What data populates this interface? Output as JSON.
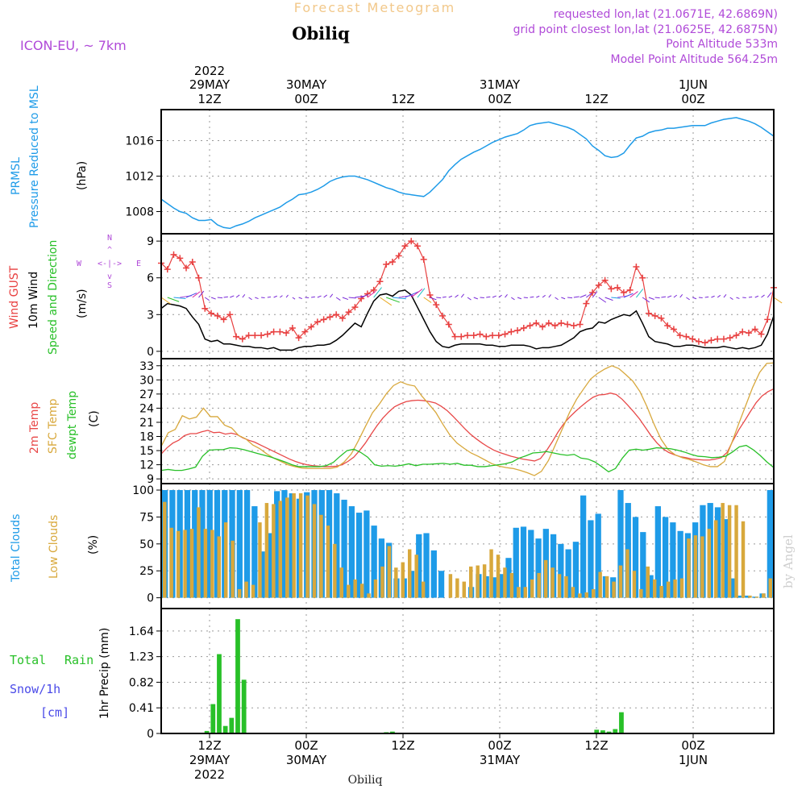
{
  "header": {
    "title": "Forecast Meteogram",
    "location": "Obiliq",
    "model": "ICON-EU, ~ 7km",
    "requested": "requested lon,lat (21.0671E, 42.6869N)",
    "gridpoint": "grid point closest lon,lat (21.0625E, 42.6875N)",
    "point_alt": "Point Altitude 533m",
    "model_alt": "Model Point Altitude 564.25m",
    "credit": "by Angel",
    "footer_location": "Obiliq"
  },
  "time_axis": {
    "top_labels": [
      {
        "line1": "2022",
        "line2": "29MAY",
        "line3": "12Z"
      },
      {
        "line1": "",
        "line2": "30MAY",
        "line3": "00Z"
      },
      {
        "line1": "",
        "line2": "",
        "line3": "12Z"
      },
      {
        "line1": "",
        "line2": "31MAY",
        "line3": "00Z"
      },
      {
        "line1": "",
        "line2": "",
        "line3": "12Z"
      },
      {
        "line1": "",
        "line2": "1JUN",
        "line3": "00Z"
      }
    ],
    "bottom_labels": [
      {
        "line1": "12Z",
        "line2": "29MAY",
        "line3": "2022"
      },
      {
        "line1": "00Z",
        "line2": "30MAY",
        "line3": ""
      },
      {
        "line1": "12Z",
        "line2": "",
        "line3": ""
      },
      {
        "line1": "00Z",
        "line2": "31MAY",
        "line3": ""
      },
      {
        "line1": "12Z",
        "line2": "",
        "line3": ""
      },
      {
        "line1": "00Z",
        "line2": "1JUN",
        "line3": ""
      }
    ]
  },
  "panels": {
    "pressure": {
      "label1": "PRMSL",
      "label2": "Pressure Reduced to MSL",
      "unit": "(hPa)",
      "ticks": [
        "1008",
        "1012",
        "1016"
      ]
    },
    "wind": {
      "label1": "Wind GUST",
      "label2": "10m Wind",
      "label3": "Speed and Direction",
      "unit": "(m/s)",
      "ticks": [
        "0",
        "3",
        "6",
        "9"
      ],
      "compass": {
        "n": "N",
        "s": "S",
        "w": "W",
        "e": "E"
      }
    },
    "temp": {
      "label1": "2m Temp",
      "label2": "SFC Temp",
      "label3": "dewpt Temp",
      "unit": "(C)",
      "ticks": [
        "9",
        "12",
        "15",
        "18",
        "21",
        "24",
        "27",
        "30",
        "33"
      ]
    },
    "clouds": {
      "label1": "Total Clouds",
      "label2": "Low Clouds",
      "unit": "(%)",
      "ticks": [
        "0",
        "25",
        "50",
        "75",
        "100"
      ]
    },
    "precip": {
      "label1": "Total",
      "label1b": "Rain",
      "label2": "Snow/1h",
      "label3": "[cm]",
      "unit": "1hr Precip (mm)",
      "ticks": [
        "0",
        "0.41",
        "0.82",
        "1.23",
        "1.64"
      ]
    }
  },
  "chart_data": {
    "type": "line",
    "x": "hours from 29MAY 06Z",
    "x_ticks_hours": [
      6,
      18,
      30,
      42,
      54,
      66
    ],
    "pressure_hpa": [
      1009.4,
      1008.9,
      1008.4,
      1008.0,
      1007.8,
      1007.3,
      1007.0,
      1007.0,
      1007.1,
      1006.5,
      1006.2,
      1006.1,
      1006.4,
      1006.6,
      1006.9,
      1007.3,
      1007.6,
      1007.9,
      1008.2,
      1008.5,
      1009.0,
      1009.4,
      1009.9,
      1010.0,
      1010.2,
      1010.5,
      1010.9,
      1011.4,
      1011.7,
      1011.9,
      1012.0,
      1012.0,
      1011.8,
      1011.6,
      1011.3,
      1011.0,
      1010.7,
      1010.5,
      1010.2,
      1010.0,
      1009.9,
      1009.8,
      1009.7,
      1010.2,
      1010.9,
      1011.6,
      1012.6,
      1013.3,
      1013.9,
      1014.3,
      1014.7,
      1015.0,
      1015.4,
      1015.8,
      1016.1,
      1016.4,
      1016.6,
      1016.8,
      1017.2,
      1017.7,
      1017.9,
      1018.0,
      1018.1,
      1017.9,
      1017.7,
      1017.5,
      1017.2,
      1016.7,
      1016.2,
      1015.4,
      1014.9,
      1014.3,
      1014.1,
      1014.2,
      1014.6,
      1015.5,
      1016.3,
      1016.5,
      1016.9,
      1017.1,
      1017.2,
      1017.4,
      1017.4,
      1017.5,
      1017.6,
      1017.7,
      1017.7,
      1017.7,
      1018.0,
      1018.2,
      1018.4,
      1018.5,
      1018.6,
      1018.4,
      1018.2,
      1017.9,
      1017.5,
      1017.0,
      1016.5
    ],
    "gust_ms": [
      7.2,
      6.7,
      7.9,
      7.6,
      6.8,
      7.3,
      6.0,
      3.5,
      3.1,
      2.9,
      2.6,
      3.0,
      1.2,
      1.0,
      1.3,
      1.3,
      1.3,
      1.4,
      1.6,
      1.6,
      1.5,
      1.9,
      1.1,
      1.6,
      2.0,
      2.4,
      2.6,
      2.8,
      3.0,
      2.7,
      3.2,
      3.6,
      4.3,
      4.7,
      5.0,
      5.7,
      7.1,
      7.3,
      7.8,
      8.6,
      9.0,
      8.6,
      7.5,
      4.6,
      3.8,
      2.9,
      2.2,
      1.2,
      1.2,
      1.3,
      1.3,
      1.4,
      1.2,
      1.3,
      1.3,
      1.4,
      1.6,
      1.7,
      1.9,
      2.1,
      2.3,
      2.0,
      2.3,
      2.1,
      2.3,
      2.2,
      2.1,
      2.2,
      3.9,
      4.8,
      5.4,
      5.8,
      5.1,
      5.2,
      4.8,
      5.0,
      6.9,
      6.0,
      3.1,
      2.9,
      2.7,
      2.1,
      1.8,
      1.3,
      1.2,
      1.0,
      0.8,
      0.7,
      0.9,
      1.0,
      1.0,
      1.1,
      1.3,
      1.6,
      1.5,
      1.8,
      1.4,
      2.6,
      5.2
    ],
    "wind10m_ms": [
      3.5,
      3.9,
      3.8,
      3.7,
      3.5,
      2.8,
      2.2,
      1.0,
      0.8,
      0.9,
      0.6,
      0.6,
      0.5,
      0.4,
      0.4,
      0.3,
      0.3,
      0.2,
      0.3,
      0.1,
      0.1,
      0.1,
      0.3,
      0.4,
      0.4,
      0.5,
      0.5,
      0.6,
      0.9,
      1.3,
      1.8,
      2.3,
      2.0,
      3.1,
      4.1,
      4.6,
      4.7,
      4.5,
      4.9,
      5.0,
      4.6,
      3.6,
      2.6,
      1.6,
      0.8,
      0.4,
      0.3,
      0.5,
      0.6,
      0.6,
      0.6,
      0.6,
      0.5,
      0.5,
      0.4,
      0.4,
      0.5,
      0.5,
      0.5,
      0.4,
      0.2,
      0.3,
      0.3,
      0.4,
      0.5,
      0.8,
      1.1,
      1.6,
      1.8,
      1.9,
      2.4,
      2.3,
      2.6,
      2.8,
      3.0,
      2.9,
      3.3,
      2.3,
      1.2,
      0.8,
      0.7,
      0.6,
      0.4,
      0.4,
      0.5,
      0.5,
      0.4,
      0.3,
      0.3,
      0.3,
      0.4,
      0.3,
      0.2,
      0.3,
      0.2,
      0.3,
      0.5,
      1.4,
      2.9
    ],
    "temp2m_c": [
      14.3,
      15.6,
      16.6,
      17.2,
      18.2,
      18.6,
      18.6,
      19.0,
      19.3,
      18.8,
      18.9,
      18.5,
      18.7,
      18.4,
      17.7,
      17.2,
      16.8,
      16.2,
      15.6,
      15.0,
      14.4,
      13.8,
      13.2,
      12.7,
      12.3,
      12.0,
      11.8,
      11.7,
      11.6,
      11.6,
      11.7,
      12.0,
      12.7,
      13.6,
      15.0,
      16.6,
      18.5,
      20.3,
      21.9,
      23.2,
      24.3,
      24.9,
      25.4,
      25.6,
      25.7,
      25.6,
      25.4,
      25.1,
      24.4,
      23.5,
      22.3,
      21.0,
      19.7,
      18.5,
      17.5,
      16.6,
      15.8,
      15.1,
      14.6,
      14.2,
      13.8,
      13.5,
      13.2,
      13.0,
      12.8,
      13.3,
      14.9,
      16.8,
      18.9,
      20.7,
      22.1,
      23.3,
      24.4,
      25.4,
      26.3,
      26.8,
      26.9,
      27.2,
      26.9,
      25.9,
      24.6,
      23.2,
      21.7,
      19.9,
      18.1,
      16.6,
      15.4,
      14.6,
      14.1,
      13.7,
      13.5,
      13.2,
      13.1,
      13.0,
      13.0,
      13.2,
      13.5,
      14.6,
      17.1,
      19.4,
      21.3,
      23.3,
      25.2,
      26.6,
      27.5,
      28.1
    ],
    "sfc_c": [
      15.9,
      18.8,
      19.5,
      22.4,
      21.7,
      22.1,
      24.0,
      22.2,
      22.2,
      20.4,
      19.8,
      18.2,
      17.5,
      16.2,
      15.4,
      14.3,
      13.4,
      12.7,
      12.0,
      11.6,
      11.3,
      11.2,
      11.2,
      11.2,
      11.2,
      11.5,
      12.6,
      14.3,
      17.1,
      20.1,
      23.0,
      24.9,
      27.1,
      28.8,
      29.6,
      29.0,
      28.7,
      26.6,
      24.9,
      23.1,
      20.6,
      18.3,
      16.6,
      15.5,
      14.5,
      13.8,
      13.0,
      12.2,
      11.7,
      11.4,
      11.2,
      10.8,
      10.3,
      9.7,
      10.6,
      12.9,
      16.3,
      19.7,
      23.1,
      25.9,
      28.1,
      30.2,
      31.4,
      32.3,
      33.0,
      32.4,
      31.1,
      29.7,
      27.5,
      24.3,
      20.6,
      17.4,
      15.2,
      14.1,
      13.5,
      13.1,
      12.6,
      12.0,
      11.6,
      11.6,
      12.7,
      16.5,
      20.6,
      24.5,
      28.4,
      31.6,
      33.5,
      33.6
    ],
    "dewpt_c": [
      10.8,
      11.0,
      10.8,
      10.8,
      11.1,
      11.5,
      13.8,
      15.1,
      15.2,
      15.2,
      15.6,
      15.5,
      15.2,
      14.8,
      14.4,
      14.0,
      13.6,
      13.1,
      12.6,
      12.0,
      11.6,
      11.6,
      11.6,
      11.6,
      11.8,
      12.5,
      13.8,
      15.0,
      15.3,
      14.6,
      13.6,
      12.0,
      11.7,
      11.8,
      11.7,
      11.9,
      12.2,
      11.8,
      12.1,
      12.1,
      12.2,
      12.3,
      12.1,
      12.3,
      11.9,
      11.9,
      11.6,
      11.6,
      11.8,
      12.0,
      12.2,
      12.6,
      13.4,
      13.9,
      14.5,
      14.6,
      14.8,
      14.5,
      14.2,
      14.0,
      14.2,
      13.4,
      13.2,
      12.6,
      11.6,
      10.5,
      11.2,
      13.4,
      15.1,
      15.3,
      15.1,
      15.3,
      15.6,
      15.5,
      15.4,
      15.1,
      14.7,
      14.2,
      13.8,
      13.7,
      13.5,
      13.6,
      13.8,
      14.7,
      15.8,
      16.1,
      15.2,
      14.0,
      12.6,
      11.4
    ],
    "total_clouds_pct": [
      100,
      100,
      100,
      100,
      100,
      100,
      100,
      100,
      100,
      100,
      100,
      100,
      85,
      43,
      60,
      99,
      100,
      97,
      92,
      98,
      100,
      100,
      100,
      97,
      91,
      85,
      79,
      81,
      67,
      55,
      51,
      18,
      18,
      25,
      59,
      60,
      44,
      25,
      0,
      0,
      0,
      10,
      22,
      20,
      19,
      22,
      37,
      65,
      66,
      63,
      55,
      64,
      59,
      50,
      45,
      52,
      95,
      72,
      78,
      20,
      19,
      100,
      88,
      75,
      61,
      21,
      85,
      75,
      70,
      62,
      60,
      70,
      86,
      88,
      84,
      73,
      18,
      2,
      2,
      1,
      4,
      100
    ],
    "low_clouds_pct": [
      89,
      65,
      62,
      63,
      64,
      84,
      64,
      63,
      57,
      70,
      53,
      8,
      15,
      12,
      70,
      88,
      87,
      90,
      93,
      97,
      97,
      95,
      87,
      77,
      67,
      50,
      28,
      12,
      17,
      13,
      4,
      17,
      29,
      48,
      28,
      33,
      45,
      40,
      15,
      0,
      0,
      0,
      22,
      18,
      15,
      29,
      30,
      31,
      45,
      40,
      28,
      23,
      10,
      10,
      17,
      23,
      35,
      28,
      22,
      20,
      10,
      4,
      5,
      8,
      24,
      20,
      15,
      30,
      45,
      25,
      8,
      29,
      17,
      11,
      15,
      17,
      18,
      55,
      58,
      57,
      64,
      72,
      88,
      86,
      86,
      71,
      2,
      1,
      4,
      18
    ],
    "precip_mm": [
      0,
      0,
      0,
      0.04,
      0.47,
      1.27,
      0.12,
      0.25,
      1.83,
      0.86,
      0,
      0,
      0,
      0,
      0,
      0,
      0,
      0,
      0,
      0,
      0,
      0,
      0,
      0,
      0,
      0,
      0,
      0,
      0,
      0,
      0,
      0,
      0.02,
      0.03,
      0,
      0,
      0,
      0,
      0,
      0,
      0,
      0,
      0,
      0,
      0,
      0,
      0,
      0,
      0,
      0,
      0,
      0,
      0,
      0,
      0,
      0,
      0,
      0,
      0,
      0,
      0,
      0,
      0,
      0,
      0,
      0,
      0.06,
      0.05,
      0.03,
      0.07,
      0.34,
      0,
      0,
      0,
      0,
      0,
      0,
      0,
      0,
      0,
      0,
      0,
      0,
      0,
      0,
      0,
      0,
      0,
      0,
      0,
      0,
      0,
      0,
      0,
      0,
      0,
      0,
      0,
      0
    ],
    "colors": {
      "pressure": "#1e9be8",
      "gust": "#e84040",
      "wind": "#000000",
      "temp2m": "#e84848",
      "sfc": "#d8a83c",
      "dewpt": "#28c028",
      "total_clouds": "#1e9be8",
      "low_clouds": "#d8a83c",
      "rain": "#28c028",
      "label_purple": "#b04ad8",
      "snow_blue": "#4a4ae8"
    }
  }
}
